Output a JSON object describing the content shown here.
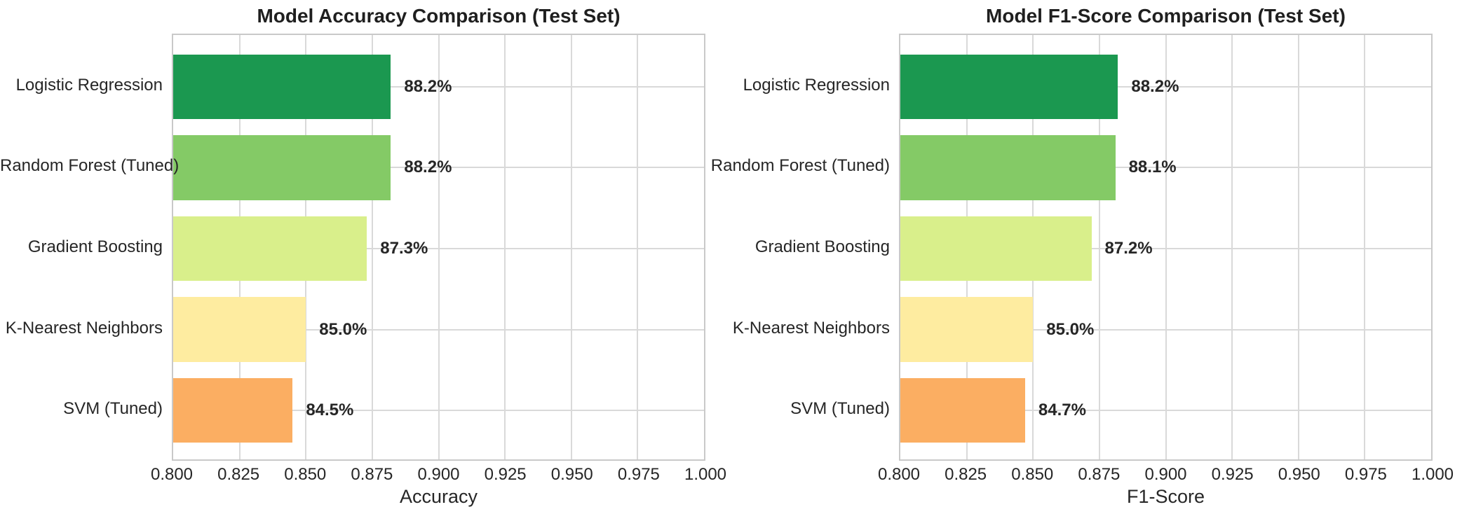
{
  "style": {
    "background": "#ffffff",
    "grid_color": "#d9d9d9",
    "spine_color": "#c9c9c9",
    "text_color": "#262626",
    "title_color": "#1f1f1f",
    "bar_colors": [
      "#1b9850",
      "#84ca66",
      "#d9ef8b",
      "#feeca0",
      "#fbae62"
    ]
  },
  "chart_data": [
    {
      "type": "bar",
      "orientation": "horizontal",
      "title": "Model Accuracy Comparison (Test Set)",
      "xlabel": "Accuracy",
      "categories": [
        "Logistic Regression",
        "Random Forest (Tuned)",
        "Gradient Boosting",
        "K-Nearest Neighbors",
        "SVM (Tuned)"
      ],
      "values": [
        0.882,
        0.882,
        0.873,
        0.85,
        0.845
      ],
      "value_labels": [
        "88.2%",
        "88.2%",
        "87.3%",
        "85.0%",
        "84.5%"
      ],
      "bar_colors": [
        "#1b9850",
        "#84ca66",
        "#d9ef8b",
        "#feeca0",
        "#fbae62"
      ],
      "xlim": [
        0.8,
        1.0
      ],
      "xticks": [
        "0.800",
        "0.825",
        "0.850",
        "0.875",
        "0.900",
        "0.925",
        "0.950",
        "0.975",
        "1.000"
      ],
      "grid": true,
      "legend": false
    },
    {
      "type": "bar",
      "orientation": "horizontal",
      "title": "Model F1-Score Comparison (Test Set)",
      "xlabel": "F1-Score",
      "categories": [
        "Logistic Regression",
        "Random Forest (Tuned)",
        "Gradient Boosting",
        "K-Nearest Neighbors",
        "SVM (Tuned)"
      ],
      "values": [
        0.882,
        0.881,
        0.872,
        0.85,
        0.847
      ],
      "value_labels": [
        "88.2%",
        "88.1%",
        "87.2%",
        "85.0%",
        "84.7%"
      ],
      "bar_colors": [
        "#1b9850",
        "#84ca66",
        "#d9ef8b",
        "#feeca0",
        "#fbae62"
      ],
      "xlim": [
        0.8,
        1.0
      ],
      "xticks": [
        "0.800",
        "0.825",
        "0.850",
        "0.875",
        "0.900",
        "0.925",
        "0.950",
        "0.975",
        "1.000"
      ],
      "grid": true,
      "legend": false
    }
  ]
}
